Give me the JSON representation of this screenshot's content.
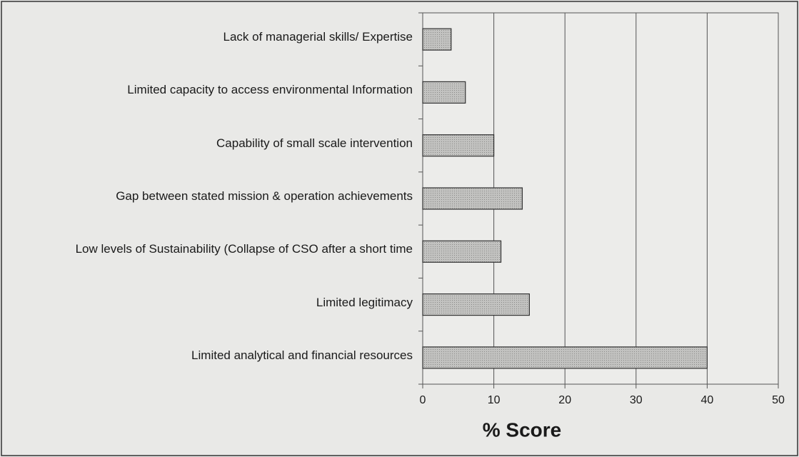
{
  "chart_data": {
    "type": "bar",
    "orientation": "horizontal",
    "categories": [
      "Lack of managerial skills/ Expertise",
      "Limited capacity to access environmental Information",
      "Capability of small scale intervention",
      "Gap between stated mission & operation achievements",
      "Low levels of Sustainability (Collapse of CSO after a short time",
      "Limited legitimacy",
      "Limited analytical and financial resources"
    ],
    "values": [
      4,
      6,
      10,
      14,
      11,
      15,
      40
    ],
    "color": "#b8b8b6",
    "xlabel": "% Score",
    "xlim": [
      0,
      50
    ],
    "xticks": [
      0,
      10,
      20,
      30,
      40,
      50
    ],
    "grid": true
  }
}
